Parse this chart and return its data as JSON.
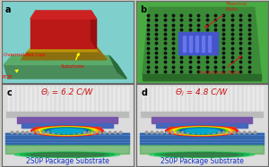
{
  "fig_width": 3.0,
  "fig_height": 1.87,
  "dpi": 100,
  "outer_bg": "#c8c8c0",
  "panel_a": {
    "label": "a",
    "bg_color": "#7fd0cc",
    "pcb_color": "#4a8c5a",
    "substrate_color": "#b8960a",
    "cap_front_color": "#bb1818",
    "cap_top_color": "#cc2222",
    "cap_right_color": "#991010",
    "pcb_side_color": "#2a6a3a"
  },
  "panel_b": {
    "label": "b",
    "bg_color": "#4aaa44",
    "board_color": "#3a8a38",
    "side_color": "#2a6a28",
    "dot_color": "#111111",
    "center_bg": "#4455cc",
    "stripe_color": "#6677ee",
    "annotation_color": "#cc2222"
  },
  "panel_c": {
    "label": "c",
    "theta_text": "Θⱼ = 6.2 C/W",
    "substrate_label": "2S0P Package Substrate",
    "bg_color": "#dcdcdc",
    "fin_color": "#e8e8e8",
    "spreader_color": "#bbbbbb",
    "pkg_purple": "#7755aa",
    "pkg_blue": "#4466bb",
    "board_color": "#5588cc",
    "board_stripe": "#3366aa",
    "ball_color": "#888888",
    "theta_color": "#cc1111",
    "label_color": "#1133cc"
  },
  "panel_d": {
    "label": "d",
    "theta_text": "Θⱼ = 4.8 C/W",
    "substrate_label": "2S0P Package Substrate",
    "bg_color": "#dcdcdc",
    "fin_color": "#e8e8e8",
    "spreader_color": "#bbbbbb",
    "pkg_purple": "#7755aa",
    "pkg_blue": "#4466bb",
    "board_color": "#5588cc",
    "board_stripe": "#3366aa",
    "ball_color": "#888888",
    "theta_color": "#cc1111",
    "label_color": "#1133cc"
  }
}
